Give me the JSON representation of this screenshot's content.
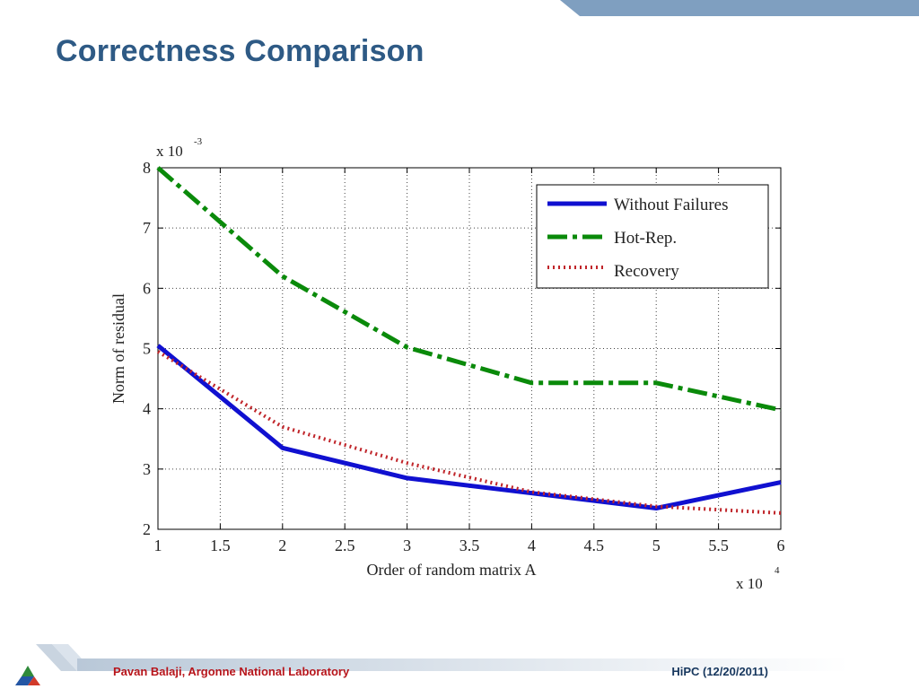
{
  "slide": {
    "title": "Correctness Comparison",
    "footer_author": "Pavan Balaji, Argonne National Laboratory",
    "footer_conference": "HiPC (12/20/2011)",
    "accent_color": "#7f9fc0"
  },
  "chart_data": {
    "type": "line",
    "title": "",
    "xlabel": "Order of random matrix A",
    "ylabel": "Norm of residual",
    "x_multiplier_label": "x 10",
    "x_multiplier_exp": "4",
    "y_multiplier_label": "x 10",
    "y_multiplier_exp": "-3",
    "xlim": [
      1,
      6
    ],
    "ylim": [
      2,
      8
    ],
    "xticks": [
      "1",
      "1.5",
      "2",
      "2.5",
      "3",
      "3.5",
      "4",
      "4.5",
      "5",
      "5.5",
      "6"
    ],
    "yticks": [
      "2",
      "3",
      "4",
      "5",
      "6",
      "7",
      "8"
    ],
    "grid": true,
    "legend_position": "top-right",
    "series": [
      {
        "name": "Without Failures",
        "color": "#1010d0",
        "style": "solid",
        "x": [
          1,
          2,
          3,
          4,
          5,
          6
        ],
        "y": [
          5.05,
          3.35,
          2.85,
          2.6,
          2.35,
          2.78
        ]
      },
      {
        "name": "Hot-Rep.",
        "color": "#0a8a0a",
        "style": "dashdot",
        "x": [
          1,
          2,
          3,
          4,
          5,
          6
        ],
        "y": [
          8.0,
          6.2,
          5.02,
          4.43,
          4.43,
          3.98
        ]
      },
      {
        "name": "Recovery",
        "color": "#c0252a",
        "style": "dotted",
        "x": [
          1,
          2,
          3,
          4,
          5,
          6
        ],
        "y": [
          4.95,
          3.7,
          3.1,
          2.62,
          2.38,
          2.27
        ]
      }
    ]
  }
}
